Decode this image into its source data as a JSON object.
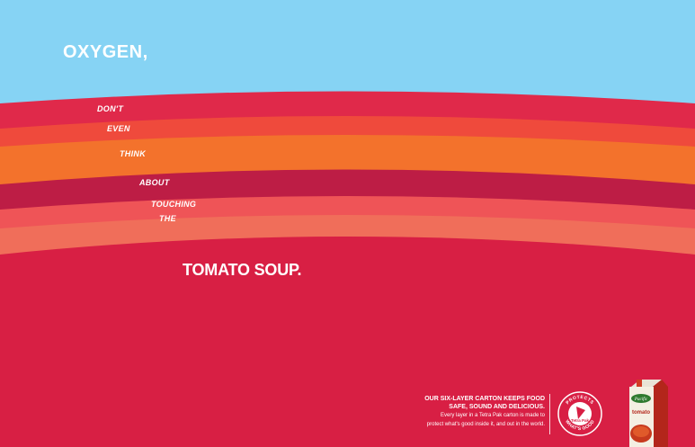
{
  "headline_top": "OXYGEN,",
  "stripe_words": [
    "DON'T",
    "EVEN",
    "THINK",
    "ABOUT",
    "TOUCHING",
    "THE"
  ],
  "headline_bottom": "TOMATO SOUP.",
  "tagline": {
    "line1": "OUR SIX-LAYER CARTON KEEPS FOOD",
    "line2": "SAFE, SOUND AND DELICIOUS.",
    "body1": "Every layer in a Tetra Pak carton is made to",
    "body2": "protect what's good inside it, and out in the world."
  },
  "logo": {
    "ring_top": "PROTECTS",
    "ring_bottom": "WHAT'S GOOD",
    "name": "Tetra Pak"
  },
  "product": {
    "brand": "Pacific",
    "name": "tomato"
  },
  "colors": {
    "sky": "#86d3f4",
    "soup": "#d81f44",
    "stripes": [
      "#e0294a",
      "#ef4a3c",
      "#f3722c",
      "#bd1d45",
      "#ef5457",
      "#f06e5a"
    ]
  }
}
